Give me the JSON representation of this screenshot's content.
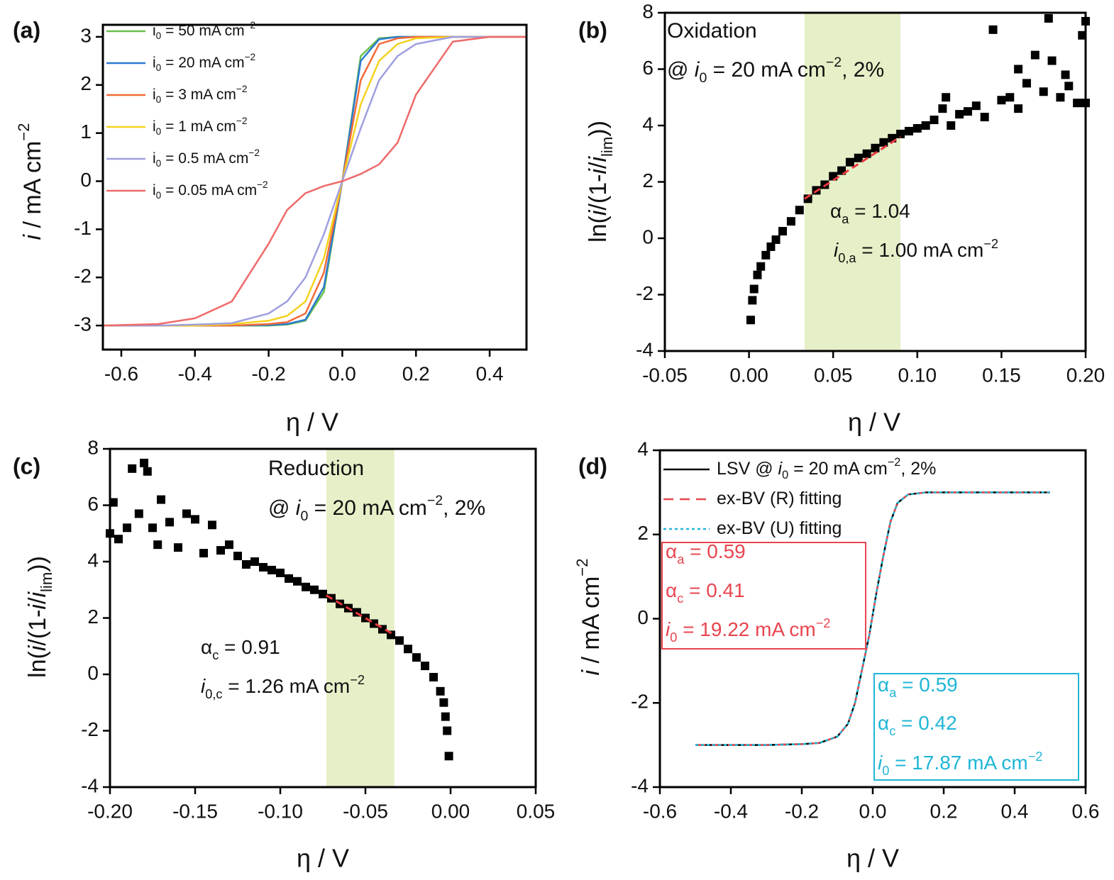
{
  "chart_data": [
    {
      "type": "line",
      "panel_label": "(a)",
      "xlabel": "η / V",
      "ylabel": [
        [
          "i",
          "i"
        ],
        [
          " / mA cm",
          ""
        ],
        [
          "−2",
          "sup"
        ]
      ],
      "xlim": [
        -0.65,
        0.5
      ],
      "ylim": [
        -3.5,
        3.25
      ],
      "xticks": [
        -0.6,
        -0.4,
        -0.2,
        {
          "value": 0,
          "label": "0.0"
        },
        0.2,
        0.4
      ],
      "yticks": [
        -3,
        -2,
        -1,
        0,
        1,
        2,
        3
      ],
      "legend": "upper left",
      "x": [
        -0.65,
        -0.5,
        -0.4,
        -0.3,
        -0.2,
        -0.15,
        -0.1,
        -0.05,
        0,
        0.05,
        0.1,
        0.15,
        0.2,
        0.3,
        0.4,
        0.5
      ],
      "series": [
        {
          "name": [
            [
              "i",
              ""
            ],
            [
              "0",
              "sub"
            ],
            [
              " = 50 mA cm",
              ""
            ],
            [
              "−2",
              "sup"
            ]
          ],
          "color": "#6abf4b",
          "values": [
            -3,
            -3,
            -3,
            -3,
            -3,
            -2.98,
            -2.9,
            -2.3,
            0,
            2.6,
            2.97,
            3,
            3,
            3,
            3,
            3
          ]
        },
        {
          "name": [
            [
              "i",
              ""
            ],
            [
              "0",
              "sub"
            ],
            [
              " = 20 mA cm",
              ""
            ],
            [
              "−2",
              "sup"
            ]
          ],
          "color": "#2b7bd0",
          "values": [
            -3,
            -3,
            -3,
            -3,
            -2.99,
            -2.97,
            -2.88,
            -2.2,
            0,
            2.5,
            2.95,
            3,
            3,
            3,
            3,
            3
          ]
        },
        {
          "name": [
            [
              "i",
              ""
            ],
            [
              "0",
              "sub"
            ],
            [
              " = 3 mA cm",
              ""
            ],
            [
              "−2",
              "sup"
            ]
          ],
          "color": "#f26b38",
          "values": [
            -3,
            -3,
            -3,
            -3,
            -2.97,
            -2.93,
            -2.75,
            -1.9,
            0,
            2.1,
            2.85,
            2.97,
            3,
            3,
            3,
            3
          ]
        },
        {
          "name": [
            [
              "i",
              ""
            ],
            [
              "0",
              "sub"
            ],
            [
              " = 1 mA cm",
              ""
            ],
            [
              "−2",
              "sup"
            ]
          ],
          "color": "#f5d21f",
          "values": [
            -3,
            -3,
            -3,
            -2.97,
            -2.9,
            -2.8,
            -2.5,
            -1.6,
            0,
            1.6,
            2.5,
            2.85,
            2.97,
            3,
            3,
            3
          ]
        },
        {
          "name": [
            [
              "i",
              ""
            ],
            [
              "0",
              "sub"
            ],
            [
              " = 0.5 mA cm",
              ""
            ],
            [
              "−2",
              "sup"
            ]
          ],
          "color": "#9f9fe0",
          "values": [
            -3,
            -3,
            -2.98,
            -2.95,
            -2.75,
            -2.5,
            -2.0,
            -1.1,
            0,
            1.1,
            2.1,
            2.6,
            2.85,
            3,
            3,
            3
          ]
        },
        {
          "name": [
            [
              "i",
              ""
            ],
            [
              "0",
              "sub"
            ],
            [
              " = 0.05 mA cm",
              ""
            ],
            [
              "−2",
              "sup"
            ]
          ],
          "color": "#ef6a6a",
          "values": [
            -3,
            -2.97,
            -2.85,
            -2.5,
            -1.3,
            -0.6,
            -0.25,
            -0.1,
            0,
            0.15,
            0.35,
            0.8,
            1.8,
            2.9,
            3,
            3
          ]
        }
      ]
    },
    {
      "type": "scatter",
      "panel_label": "(b)",
      "xlabel": "η / V",
      "ylabel": [
        [
          "ln(",
          ""
        ],
        [
          "i",
          "i"
        ],
        [
          "/(1-",
          ""
        ],
        [
          "i",
          "i"
        ],
        [
          "/",
          ""
        ],
        [
          "i",
          "i"
        ],
        [
          "lim",
          "sub"
        ],
        [
          "))",
          ""
        ]
      ],
      "xlim": [
        -0.05,
        0.2
      ],
      "ylim": [
        -4,
        8
      ],
      "xticks": [
        -0.05,
        {
          "value": 0,
          "label": "0.00"
        },
        0.05,
        {
          "value": 0.1,
          "label": "0.10"
        },
        0.15,
        {
          "value": 0.2,
          "label": "0.20"
        }
      ],
      "yticks": [
        -4,
        -2,
        0,
        2,
        4,
        6,
        8
      ],
      "color": "#000000",
      "highlight": {
        "range": [
          0.033,
          0.09
        ],
        "color": "#e6f0c8"
      },
      "fit": {
        "x": [
          0.033,
          0.09
        ],
        "values": [
          1.4,
          3.6
        ],
        "color": "#e8383d"
      },
      "x": [
        0.001,
        0.002,
        0.003,
        0.005,
        0.007,
        0.01,
        0.013,
        0.016,
        0.02,
        0.025,
        0.03,
        0.035,
        0.04,
        0.045,
        0.05,
        0.055,
        0.06,
        0.065,
        0.07,
        0.075,
        0.08,
        0.085,
        0.09,
        0.095,
        0.1,
        0.105,
        0.11,
        0.115,
        0.117,
        0.12,
        0.125,
        0.13,
        0.135,
        0.14,
        0.145,
        0.15,
        0.155,
        0.16,
        0.16,
        0.165,
        0.17,
        0.175,
        0.178,
        0.18,
        0.185,
        0.188,
        0.19,
        0.195,
        0.198,
        0.2,
        0.2
      ],
      "values": [
        -2.9,
        -2.2,
        -1.8,
        -1.3,
        -1.0,
        -0.6,
        -0.3,
        -0.05,
        0.25,
        0.6,
        1.0,
        1.4,
        1.7,
        1.9,
        2.2,
        2.4,
        2.7,
        2.85,
        3.0,
        3.2,
        3.4,
        3.55,
        3.7,
        3.8,
        3.9,
        4.0,
        4.2,
        4.6,
        5.0,
        4.0,
        4.4,
        4.5,
        4.7,
        4.3,
        7.4,
        4.9,
        5.0,
        4.6,
        6.0,
        5.5,
        6.5,
        5.2,
        7.8,
        6.3,
        5.0,
        5.8,
        5.4,
        4.8,
        7.2,
        4.8,
        7.7
      ],
      "annotations": [
        [
          [
            "Oxidation",
            ""
          ]
        ],
        [
          [
            "@ ",
            ""
          ],
          [
            "i",
            "i"
          ],
          [
            "0",
            "sub"
          ],
          [
            " = 20 mA cm",
            ""
          ],
          [
            "−2",
            "sup"
          ],
          [
            ", 2%",
            ""
          ]
        ],
        [
          [
            "α",
            ""
          ],
          [
            "a",
            "sub"
          ],
          [
            " = 1.04",
            ""
          ]
        ],
        [
          [
            "i",
            "i"
          ],
          [
            "0,a",
            "sub"
          ],
          [
            " = 1.00 mA cm",
            ""
          ],
          [
            "−2",
            "sup"
          ]
        ]
      ]
    },
    {
      "type": "scatter",
      "panel_label": "(c)",
      "xlabel": "η / V",
      "ylabel": [
        [
          "ln(",
          ""
        ],
        [
          "i",
          "i"
        ],
        [
          "/(1-",
          ""
        ],
        [
          "i",
          "i"
        ],
        [
          "/",
          ""
        ],
        [
          "i",
          "i"
        ],
        [
          "lim",
          "sub"
        ],
        [
          "))",
          ""
        ]
      ],
      "xlim": [
        -0.2,
        0.05
      ],
      "ylim": [
        -4,
        8
      ],
      "xticks": [
        {
          "value": -0.2,
          "label": "-0.20"
        },
        -0.15,
        {
          "value": -0.1,
          "label": "-0.10"
        },
        -0.05,
        {
          "value": 0,
          "label": "0.00"
        },
        0.05
      ],
      "yticks": [
        -4,
        -2,
        0,
        2,
        4,
        6,
        8
      ],
      "color": "#000000",
      "highlight": {
        "range": [
          -0.073,
          -0.033
        ],
        "color": "#e6f0c8"
      },
      "fit": {
        "x": [
          -0.073,
          -0.033
        ],
        "values": [
          2.8,
          1.4
        ],
        "color": "#e8383d"
      },
      "x": [
        -0.2,
        -0.198,
        -0.195,
        -0.19,
        -0.187,
        -0.183,
        -0.18,
        -0.178,
        -0.175,
        -0.172,
        -0.17,
        -0.165,
        -0.16,
        -0.155,
        -0.15,
        -0.145,
        -0.14,
        -0.135,
        -0.13,
        -0.125,
        -0.12,
        -0.115,
        -0.11,
        -0.105,
        -0.1,
        -0.095,
        -0.09,
        -0.085,
        -0.08,
        -0.075,
        -0.07,
        -0.065,
        -0.06,
        -0.055,
        -0.05,
        -0.045,
        -0.04,
        -0.035,
        -0.03,
        -0.025,
        -0.02,
        -0.015,
        -0.01,
        -0.006,
        -0.004,
        -0.003,
        -0.002,
        -0.001
      ],
      "values": [
        5.0,
        6.1,
        4.8,
        5.2,
        7.3,
        5.7,
        7.5,
        7.2,
        5.2,
        4.6,
        6.2,
        5.4,
        4.5,
        5.7,
        5.5,
        4.3,
        5.3,
        4.4,
        4.6,
        4.2,
        3.9,
        4.0,
        3.8,
        3.7,
        3.6,
        3.4,
        3.3,
        3.1,
        3.0,
        2.85,
        2.7,
        2.5,
        2.35,
        2.2,
        2.0,
        1.8,
        1.6,
        1.4,
        1.2,
        0.9,
        0.6,
        0.3,
        -0.1,
        -0.6,
        -1.0,
        -1.5,
        -2.0,
        -2.9
      ],
      "annotations": [
        [
          [
            "Reduction",
            ""
          ]
        ],
        [
          [
            "@ ",
            ""
          ],
          [
            "i",
            "i"
          ],
          [
            "0",
            "sub"
          ],
          [
            " = 20 mA cm",
            ""
          ],
          [
            "−2",
            "sup"
          ],
          [
            ", 2%",
            ""
          ]
        ],
        [
          [
            "α",
            ""
          ],
          [
            "c",
            "sub"
          ],
          [
            " = 0.91",
            ""
          ]
        ],
        [
          [
            "i",
            "i"
          ],
          [
            "0,c",
            "sub"
          ],
          [
            " = 1.26 mA cm",
            ""
          ],
          [
            "−2",
            "sup"
          ]
        ]
      ]
    },
    {
      "type": "line",
      "panel_label": "(d)",
      "xlabel": "η / V",
      "ylabel": [
        [
          "i",
          "i"
        ],
        [
          " / mA cm",
          ""
        ],
        [
          "−2",
          "sup"
        ]
      ],
      "xlim": [
        -0.6,
        0.6
      ],
      "ylim": [
        -4,
        4
      ],
      "xticks": [
        -0.6,
        -0.4,
        -0.2,
        {
          "value": 0,
          "label": "0.0"
        },
        0.2,
        0.4,
        0.6
      ],
      "yticks": [
        -4,
        -2,
        0,
        2,
        4
      ],
      "legend": "upper left",
      "x": [
        -0.5,
        -0.3,
        -0.2,
        -0.15,
        -0.1,
        -0.07,
        -0.05,
        -0.03,
        -0.01,
        0,
        0.01,
        0.03,
        0.05,
        0.07,
        0.1,
        0.15,
        0.2,
        0.3,
        0.5
      ],
      "series": [
        {
          "name": [
            [
              "LSV @ ",
              ""
            ],
            [
              "i",
              "i"
            ],
            [
              "0",
              "sub"
            ],
            [
              " = 20 mA cm",
              ""
            ],
            [
              "−2",
              "sup"
            ],
            [
              ", 2%",
              ""
            ]
          ],
          "color": "#000000",
          "dash": "solid",
          "values": [
            -3,
            -3,
            -2.98,
            -2.95,
            -2.8,
            -2.5,
            -2.0,
            -1.2,
            -0.4,
            0.1,
            0.6,
            1.5,
            2.3,
            2.75,
            2.95,
            3,
            3,
            3,
            3
          ]
        },
        {
          "name": [
            [
              "ex-BV (R) fitting",
              ""
            ]
          ],
          "color": "#e8454f",
          "dash": "dashed",
          "values": [
            -3,
            -3,
            -2.98,
            -2.95,
            -2.8,
            -2.5,
            -2.0,
            -1.2,
            -0.4,
            0.1,
            0.6,
            1.5,
            2.3,
            2.75,
            2.95,
            3,
            3,
            3,
            3
          ]
        },
        {
          "name": [
            [
              "ex-BV (U) fitting",
              ""
            ]
          ],
          "color": "#1fb6d6",
          "dash": "dotted",
          "values": [
            -3,
            -3,
            -2.98,
            -2.95,
            -2.8,
            -2.5,
            -2.0,
            -1.2,
            -0.4,
            0.1,
            0.6,
            1.5,
            2.3,
            2.75,
            2.95,
            3,
            3,
            3,
            3
          ]
        }
      ],
      "boxes": [
        {
          "color": "#e8454f",
          "lines": [
            [
              [
                "α",
                ""
              ],
              [
                "a",
                "sub"
              ],
              [
                " = 0.59",
                ""
              ]
            ],
            [
              [
                "α",
                ""
              ],
              [
                "c",
                "sub"
              ],
              [
                " = 0.41",
                ""
              ]
            ],
            [
              [
                "i",
                "i"
              ],
              [
                "0",
                "sub"
              ],
              [
                " = 19.22 mA cm",
                ""
              ],
              [
                "−2",
                "sup"
              ]
            ]
          ]
        },
        {
          "color": "#1fb6d6",
          "lines": [
            [
              [
                "α",
                ""
              ],
              [
                "a",
                "sub"
              ],
              [
                " = 0.59",
                ""
              ]
            ],
            [
              [
                "α",
                ""
              ],
              [
                "c",
                "sub"
              ],
              [
                " = 0.42",
                ""
              ]
            ],
            [
              [
                "i",
                "i"
              ],
              [
                "0",
                "sub"
              ],
              [
                " = 17.87 mA cm",
                ""
              ],
              [
                "−2",
                "sup"
              ]
            ]
          ]
        }
      ]
    }
  ]
}
